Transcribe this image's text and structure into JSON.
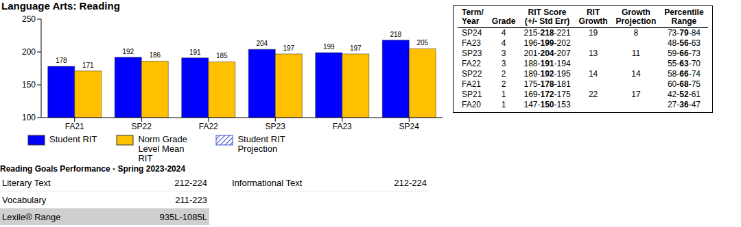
{
  "title": "Language Arts: Reading",
  "chart_data": {
    "type": "bar",
    "categories": [
      "FA21",
      "SP22",
      "FA22",
      "SP23",
      "FA23",
      "SP24"
    ],
    "series": [
      {
        "name": "Student RIT",
        "color": "#0000ff",
        "values": [
          178,
          192,
          191,
          204,
          199,
          218
        ]
      },
      {
        "name": "Norm Grade Level Mean RIT",
        "color": "#ffc000",
        "values": [
          171,
          186,
          185,
          197,
          197,
          205
        ]
      },
      {
        "name": "Student RIT Projection",
        "color": "#3a4fd0",
        "marker": "hatch",
        "values": [
          null,
          null,
          null,
          null,
          null,
          null
        ]
      }
    ],
    "ylim": [
      100,
      250
    ],
    "yticks": [
      100,
      150,
      200,
      250
    ],
    "grid": false,
    "data_labels": true,
    "legend": "bottom"
  },
  "goals": {
    "title": "Reading Goals Performance - Spring 2023-2024",
    "columns": [
      [
        {
          "label": "Literary Text",
          "value": "212-224"
        },
        {
          "label": "Vocabulary",
          "value": "211-223"
        },
        {
          "label": "Lexile® Range",
          "value": "935L-1085L"
        }
      ],
      [
        {
          "label": "Informational Text",
          "value": "212-224"
        }
      ]
    ]
  },
  "table": {
    "headers": [
      [
        "Term/",
        "Year"
      ],
      [
        "Grade"
      ],
      [
        "RIT Score",
        "(+/- Std Err)"
      ],
      [
        "RIT",
        "Growth"
      ],
      [
        "Growth",
        "Projection"
      ],
      [
        "Percentile",
        "Range"
      ]
    ],
    "rows": [
      [
        "SP24",
        "4",
        "215-218-221",
        "19",
        "8",
        "73-79-84"
      ],
      [
        "FA23",
        "4",
        "196-199-202",
        null,
        null,
        "48-56-63"
      ],
      [
        "SP23",
        "3",
        "201-204-207",
        "13",
        "11",
        "59-66-73"
      ],
      [
        "FA22",
        "3",
        "188-191-194",
        null,
        null,
        "55-63-70"
      ],
      [
        "SP22",
        "2",
        "189-192-195",
        "14",
        "14",
        "58-66-74"
      ],
      [
        "FA21",
        "2",
        "175-178-181",
        null,
        null,
        "60-68-75"
      ],
      [
        "SP21",
        "1",
        "169-172-175",
        "22",
        "17",
        "42-52-61"
      ],
      [
        "FA20",
        "1",
        "147-150-153",
        null,
        null,
        "27-36-47"
      ]
    ]
  }
}
